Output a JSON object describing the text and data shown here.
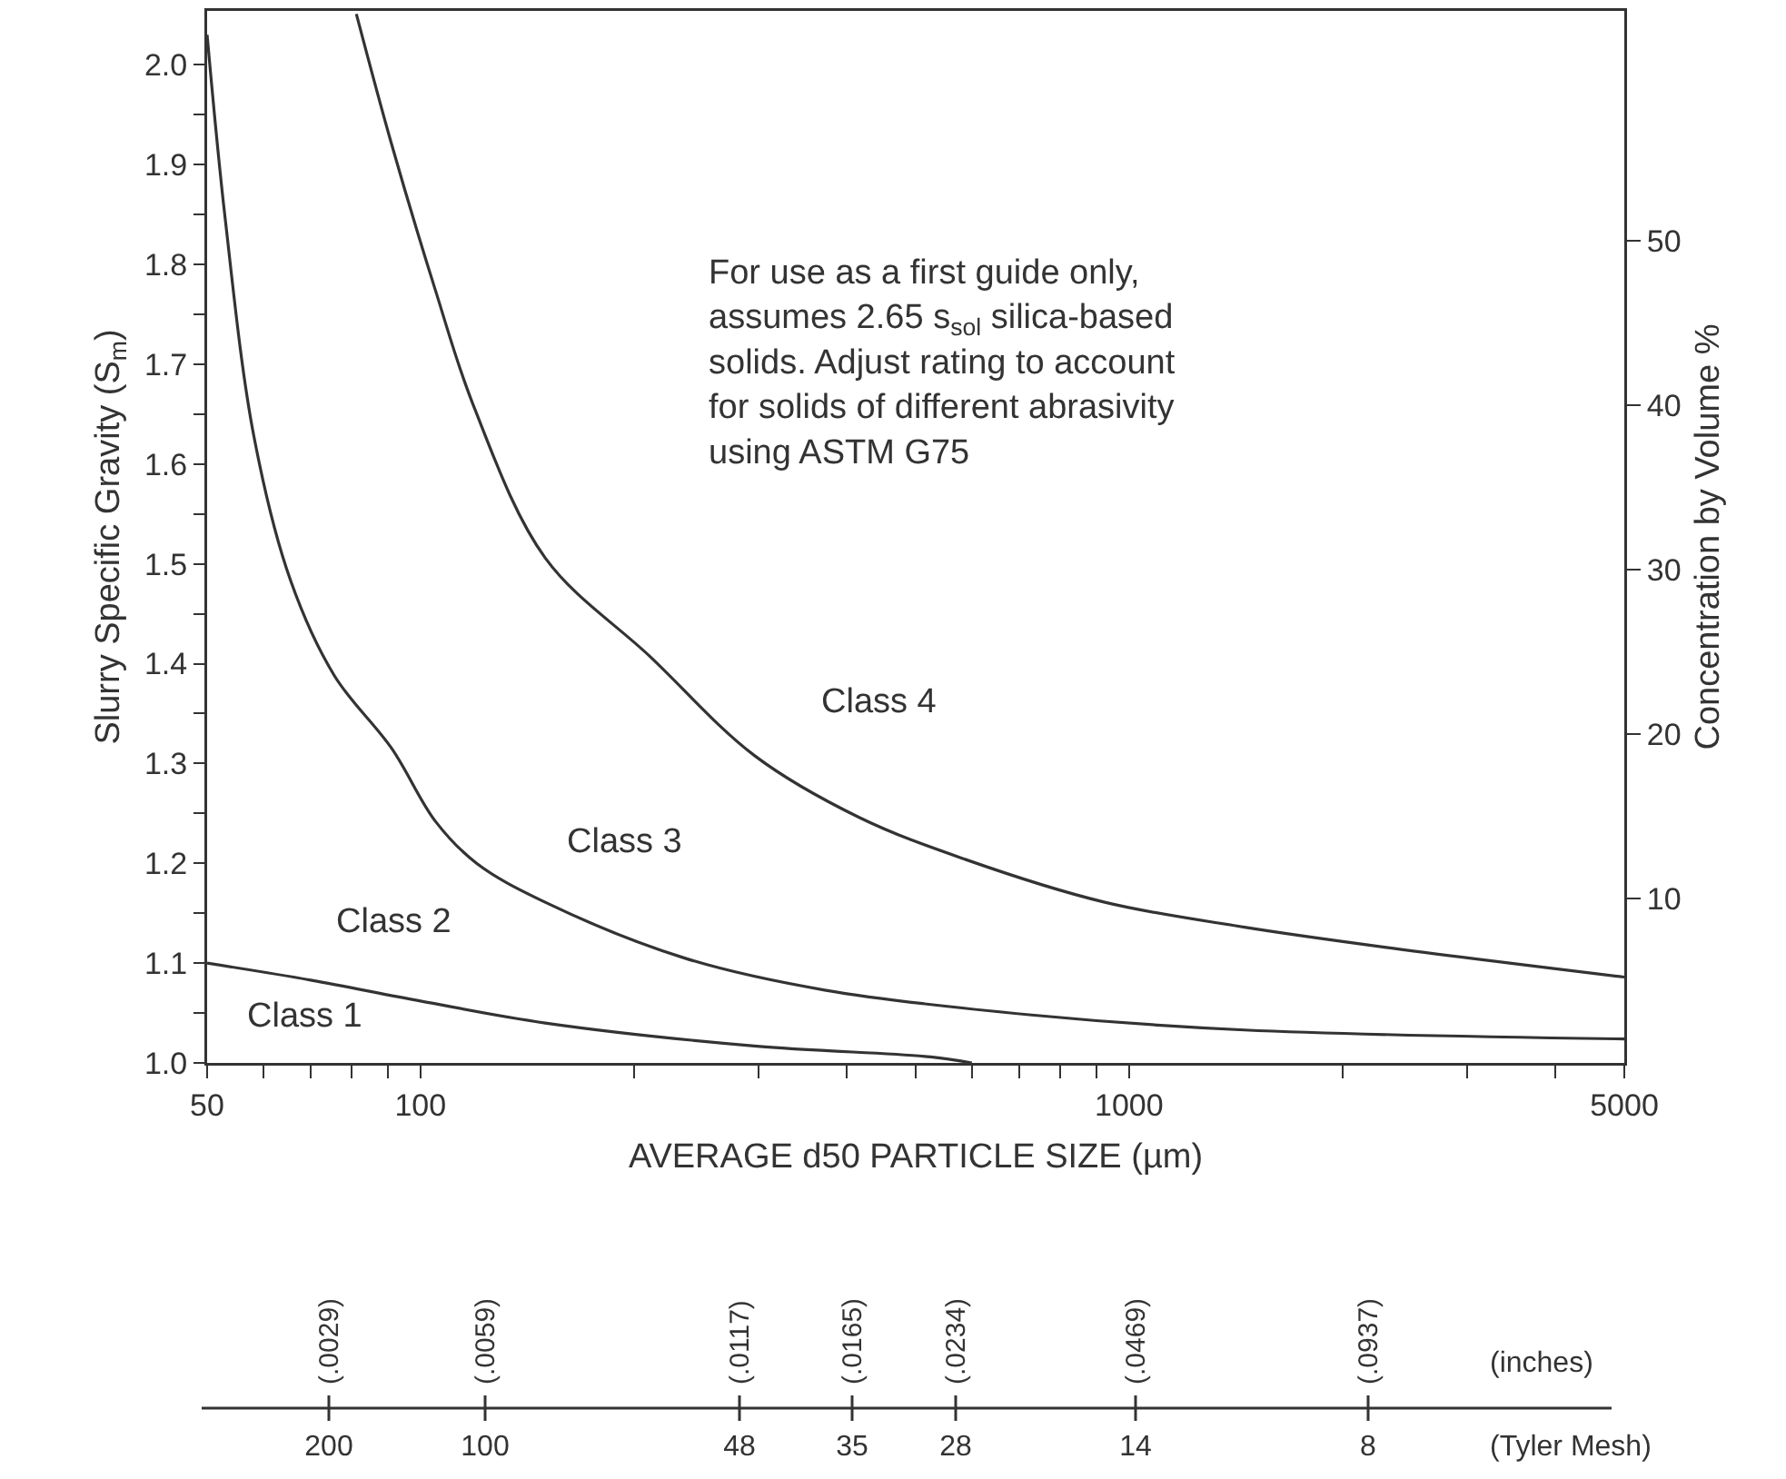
{
  "chart_data": [
    {
      "type": "line",
      "xlabel": "AVERAGE d50 PARTICLE SIZE (µm)",
      "ylabel": "Slurry Specific Gravity (S$_{m}$)",
      "y2label": "Concentration by Volume %",
      "log": "x",
      "grid": false,
      "marker": "none",
      "line_style": "solid",
      "xlim": [
        50,
        5000
      ],
      "xticks": [
        50,
        {
          "value": 60,
          "label": null
        },
        {
          "value": 70,
          "label": null
        },
        {
          "value": 80,
          "label": null
        },
        {
          "value": 90,
          "label": null
        },
        100,
        {
          "value": 200,
          "label": null
        },
        {
          "value": 300,
          "label": null
        },
        {
          "value": 400,
          "label": null
        },
        {
          "value": 500,
          "label": null
        },
        {
          "value": 600,
          "label": null
        },
        {
          "value": 700,
          "label": null
        },
        {
          "value": 800,
          "label": null
        },
        {
          "value": 900,
          "label": null
        },
        1000,
        {
          "value": 2000,
          "label": null
        },
        {
          "value": 3000,
          "label": null
        },
        {
          "value": 4000,
          "label": null
        },
        5000
      ],
      "ylim": [
        1.0,
        2.054
      ],
      "yticks": [
        {
          "value": 1.0,
          "label": "1.0"
        },
        {
          "value": 1.05,
          "label": null
        },
        1.1,
        {
          "value": 1.15,
          "label": null
        },
        1.2,
        {
          "value": 1.25,
          "label": null
        },
        1.3,
        {
          "value": 1.35,
          "label": null
        },
        1.4,
        {
          "value": 1.45,
          "label": null
        },
        1.5,
        {
          "value": 1.55,
          "label": null
        },
        1.6,
        {
          "value": 1.65,
          "label": null
        },
        1.7,
        {
          "value": 1.75,
          "label": null
        },
        1.8,
        {
          "value": 1.85,
          "label": null
        },
        1.9,
        {
          "value": 1.95,
          "label": null
        },
        {
          "value": 2.0,
          "label": "2.0"
        }
      ],
      "y2lim": [
        0,
        64
      ],
      "y2ticks": [
        10,
        20,
        30,
        40,
        50
      ],
      "series": [
        {
          "color": "#333333",
          "x": [
            50,
            70,
            100,
            150,
            296,
            525,
            600
          ],
          "values": [
            1.1,
            1.083,
            1.062,
            1.04,
            1.017,
            1.006,
            1.0
          ]
        },
        {
          "color": "#333333",
          "x": [
            50,
            53,
            58.2,
            65.6,
            75.6,
            91.1,
            105,
            120,
            150,
            236,
            372,
            729,
            1456,
            5000
          ],
          "values": [
            2.03,
            1.847,
            1.628,
            1.483,
            1.388,
            1.315,
            1.242,
            1.2,
            1.161,
            1.105,
            1.073,
            1.048,
            1.033,
            1.024
          ]
        },
        {
          "color": "#333333",
          "x": [
            81.2,
            91.1,
            105,
            118.9,
            150,
            211,
            296,
            416,
            587,
            924,
            1456,
            2294,
            5000
          ],
          "values": [
            2.051,
            1.92,
            1.774,
            1.658,
            1.506,
            1.407,
            1.308,
            1.246,
            1.204,
            1.161,
            1.136,
            1.116,
            1.086
          ]
        }
      ],
      "annotations": [
        "For use as a first guide only,\nassumes 2.65 s$_{sol}$ silica-based\nsolids. Adjust rating to account\nfor solids of different abrasivity\nusing ASTM G75",
        "Class 1",
        "Class 2",
        "Class 3",
        "Class 4"
      ]
    },
    {
      "type": "other",
      "annotations": [
        "(Tyler Mesh)",
        "200",
        "100",
        "48",
        "35",
        "28",
        "14",
        "8",
        "(inches)",
        "(.0029)",
        "(.0059)",
        "(.0117)",
        "(.0165)",
        "(.0234)",
        "(.0469)",
        "(.0937)"
      ]
    }
  ]
}
